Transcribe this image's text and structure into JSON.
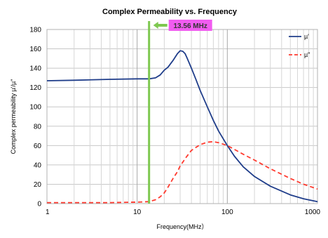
{
  "chart_data": {
    "type": "line",
    "title": "Complex Permeability vs. Frequency",
    "xlabel": "Frequency(MHz）",
    "ylabel": "Complex permeability µ'/µ\"",
    "xscale": "log",
    "xlim": [
      1,
      1000
    ],
    "ylim": [
      0,
      180
    ],
    "xticks": [
      1,
      10,
      100,
      1000
    ],
    "xtick_labels": [
      "1",
      "10",
      "100",
      "1000"
    ],
    "yticks": [
      0,
      20,
      40,
      60,
      80,
      100,
      120,
      140,
      160,
      180
    ],
    "ytick_labels": [
      "0",
      "20",
      "40",
      "60",
      "80",
      "100",
      "120",
      "140",
      "160",
      "180"
    ],
    "grid": true,
    "legend_position": "top-right",
    "series": [
      {
        "name": "µ'",
        "color": "#1f3d8a",
        "style": "solid",
        "x": [
          1,
          2,
          5,
          10,
          13.56,
          16,
          18,
          20,
          22,
          25,
          28,
          30,
          32,
          34,
          36,
          40,
          45,
          50,
          60,
          70,
          80,
          100,
          120,
          150,
          200,
          300,
          500,
          700,
          1000
        ],
        "y": [
          127,
          127.5,
          128.5,
          129,
          129,
          130,
          133,
          138,
          141,
          148,
          155,
          158,
          157.5,
          155,
          150,
          140,
          128,
          117,
          100,
          86,
          75,
          60,
          49,
          38,
          28,
          18,
          9,
          5,
          2
        ]
      },
      {
        "name": "µ\"",
        "color": "#ff3b30",
        "style": "dashed",
        "x": [
          1,
          2,
          5,
          10,
          13.56,
          16,
          18,
          20,
          22,
          25,
          28,
          30,
          35,
          40,
          50,
          60,
          70,
          80,
          100,
          120,
          150,
          200,
          300,
          500,
          700,
          1000
        ],
        "y": [
          1,
          1,
          1,
          1.5,
          2,
          4,
          7,
          11,
          17,
          26,
          33,
          39,
          48,
          55,
          61,
          63.5,
          64,
          63,
          60,
          56,
          51,
          45,
          36,
          26,
          20,
          15
        ]
      }
    ],
    "annotations": [
      {
        "text": "13.56 MHz",
        "x": 13.56,
        "line_color": "#7ec850",
        "label_bg": "#f15cf0"
      }
    ]
  }
}
